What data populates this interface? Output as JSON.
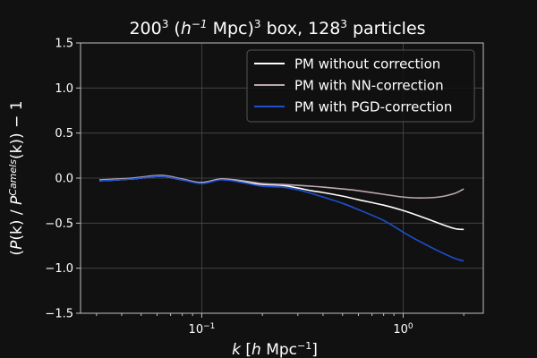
{
  "chart_data": {
    "type": "line",
    "title": {
      "base": "200",
      "exp1": "3",
      "pre_h": " (",
      "h": "h",
      "h_exp": "−1",
      "mpc": " Mpc)",
      "exp2": "3",
      "mid": " box, 128",
      "exp3": "3",
      "post": " particles"
    },
    "xlabel": {
      "k": "k",
      "open": " [",
      "h": "h",
      "mpc": " Mpc",
      "exp": "−1",
      "close": "]"
    },
    "ylabel": {
      "open": "(",
      "P": "P",
      "k1": "(k) / ",
      "P2": "P",
      "sup": "Camels",
      "k2": "(k)) − 1"
    },
    "xscale": "log",
    "xlim": [
      0.025,
      2.5
    ],
    "ylim": [
      -1.5,
      1.5
    ],
    "grid": true,
    "legend_position": "top-right",
    "x_ticks": [
      {
        "value": 0.1,
        "base": "10",
        "exp": "−1"
      },
      {
        "value": 1.0,
        "base": "10",
        "exp": "0"
      }
    ],
    "y_ticks": [
      {
        "value": -1.5,
        "label": "−1.5"
      },
      {
        "value": -1.0,
        "label": "−1.0"
      },
      {
        "value": -0.5,
        "label": "−0.5"
      },
      {
        "value": 0.0,
        "label": "0.0"
      },
      {
        "value": 0.5,
        "label": "0.5"
      },
      {
        "value": 1.0,
        "label": "1.0"
      },
      {
        "value": 1.5,
        "label": "1.5"
      }
    ],
    "x": [
      0.031,
      0.045,
      0.063,
      0.08,
      0.1,
      0.125,
      0.16,
      0.2,
      0.25,
      0.3,
      0.35,
      0.4,
      0.5,
      0.6,
      0.8,
      1.0,
      1.2,
      1.5,
      1.8,
      2.0
    ],
    "series": [
      {
        "name": "PM without correction",
        "color": "#ffffff",
        "values": [
          -0.03,
          -0.01,
          0.02,
          -0.02,
          -0.05,
          -0.01,
          -0.04,
          -0.07,
          -0.08,
          -0.11,
          -0.14,
          -0.16,
          -0.2,
          -0.24,
          -0.3,
          -0.36,
          -0.42,
          -0.5,
          -0.56,
          -0.57
        ]
      },
      {
        "name": "PM with NN-correction",
        "color": "#b9a8b5",
        "values": [
          -0.02,
          0.0,
          0.03,
          -0.01,
          -0.05,
          -0.01,
          -0.03,
          -0.06,
          -0.07,
          -0.08,
          -0.09,
          -0.1,
          -0.12,
          -0.14,
          -0.18,
          -0.21,
          -0.22,
          -0.21,
          -0.17,
          -0.12
        ]
      },
      {
        "name": "PM with PGD-correction",
        "color": "#1f4fd0",
        "values": [
          -0.03,
          -0.01,
          0.02,
          -0.02,
          -0.06,
          -0.02,
          -0.05,
          -0.09,
          -0.1,
          -0.13,
          -0.17,
          -0.21,
          -0.28,
          -0.35,
          -0.47,
          -0.6,
          -0.7,
          -0.81,
          -0.89,
          -0.92
        ]
      }
    ]
  }
}
